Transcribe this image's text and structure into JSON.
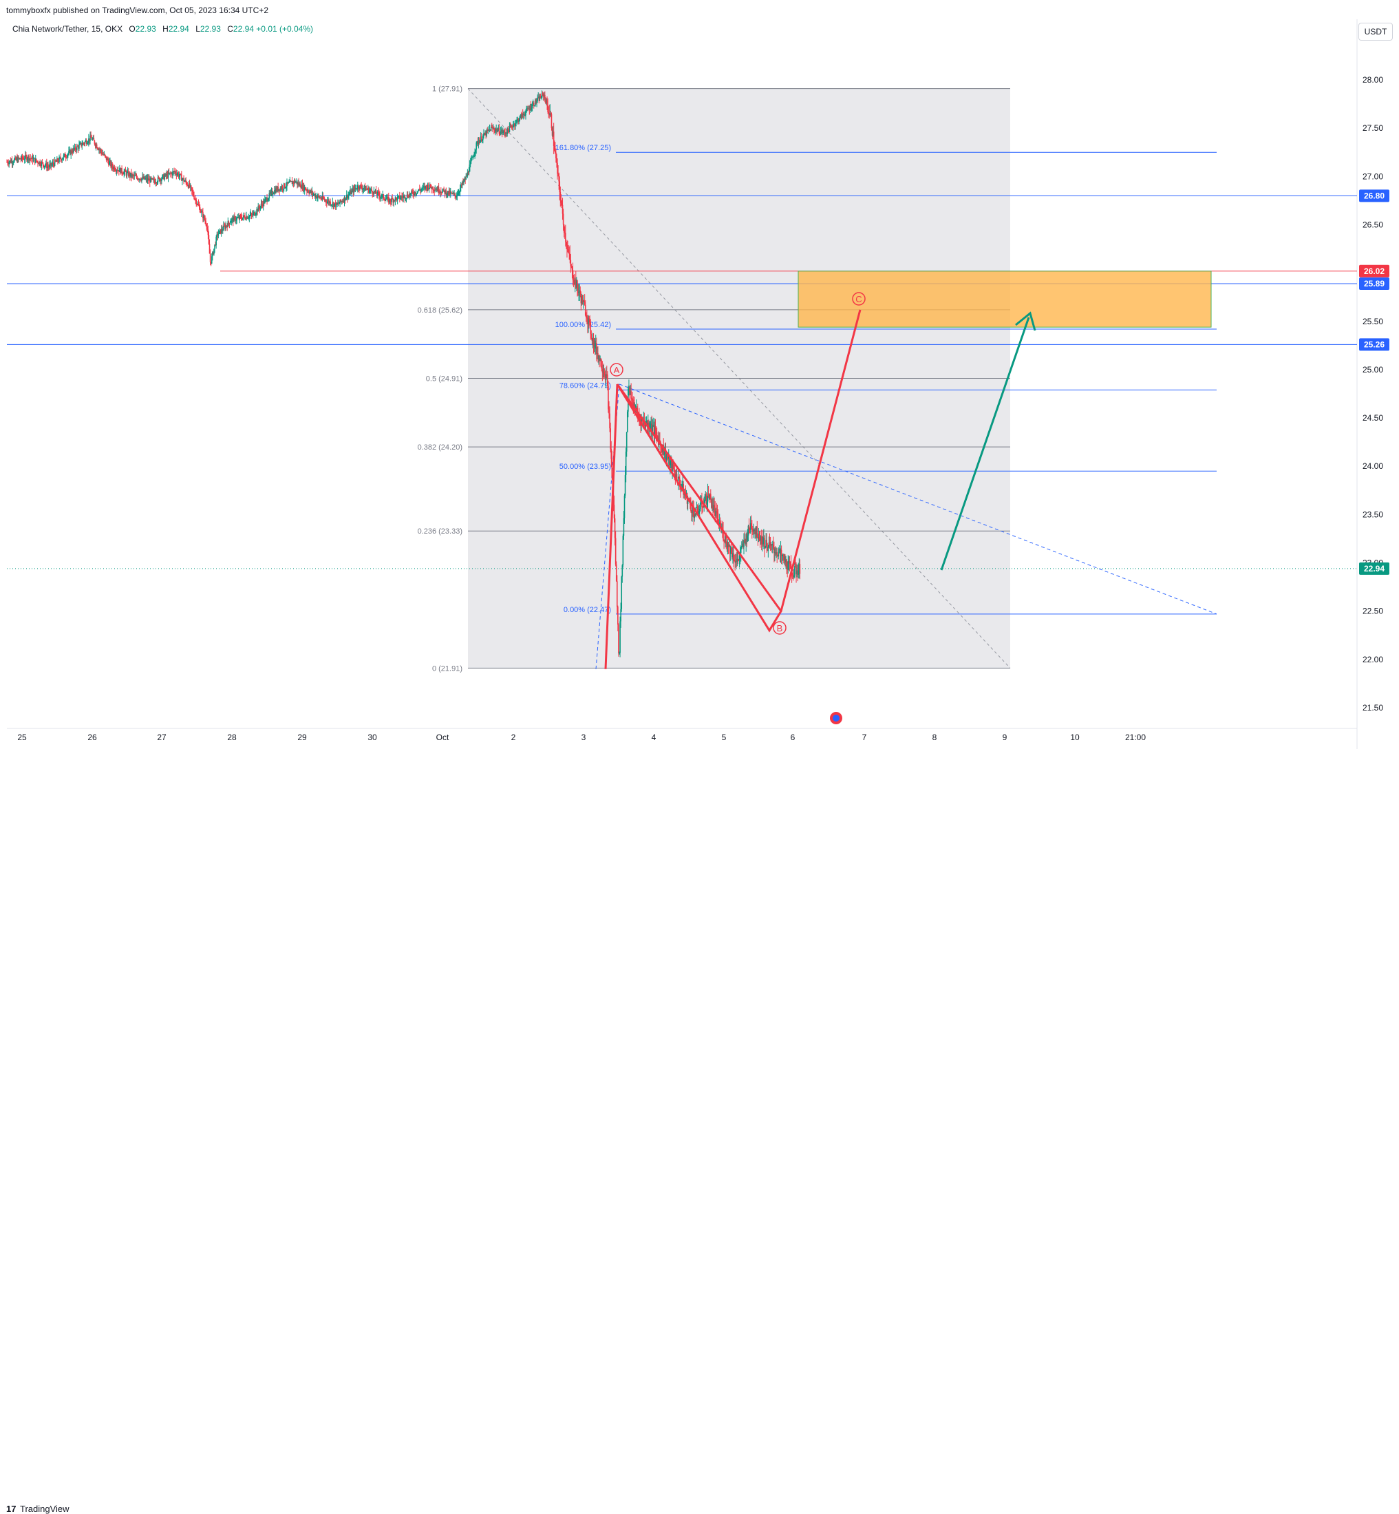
{
  "header": {
    "publish_line": "tommyboxfx published on TradingView.com, Oct 05, 2023 16:34 UTC+2",
    "symbol": "Chia Network/Tether, 15, OKX",
    "open_label": "O",
    "open": "22.93",
    "high_label": "H",
    "high": "22.94",
    "low_label": "L",
    "low": "22.93",
    "close_label": "C",
    "close": "22.94",
    "change": "+0.01 (+0.04%)",
    "currency": "USDT"
  },
  "footer": {
    "logo_mark": "17",
    "logo_text": "TradingView"
  },
  "colors": {
    "up": "#089981",
    "down": "#f23645",
    "blue_line": "#2962ff",
    "red_line": "#f23645",
    "box_fill": "#ffb74d",
    "zone": "#e7e7ea",
    "wave": "#f23645",
    "arrow": "#089981"
  },
  "chart_data": {
    "type": "candlestick",
    "title": "",
    "xlabel": "",
    "ylabel": "",
    "ylim": [
      21.25,
      28.35
    ],
    "y_ticks": [
      "28.00",
      "27.50",
      "27.00",
      "26.50",
      "25.50",
      "25.00",
      "24.50",
      "24.00",
      "23.50",
      "23.00",
      "22.50",
      "22.00",
      "21.50"
    ],
    "x_ticks": [
      "25",
      "26",
      "27",
      "28",
      "29",
      "30",
      "Oct",
      "2",
      "3",
      "4",
      "5",
      "6",
      "7",
      "8",
      "9",
      "10",
      "21:00"
    ],
    "price_tags": [
      {
        "label": "26.80",
        "value": 26.8,
        "color": "blue"
      },
      {
        "label": "26.02",
        "value": 26.02,
        "color": "red"
      },
      {
        "label": "25.89",
        "value": 25.89,
        "color": "blue"
      },
      {
        "label": "25.26",
        "value": 25.26,
        "color": "blue"
      },
      {
        "label": "22.94",
        "value": 22.94,
        "color": "green"
      }
    ],
    "fib_retracement": [
      {
        "label": "1 (27.91)",
        "value": 27.91
      },
      {
        "label": "0.618 (25.62)",
        "value": 25.62
      },
      {
        "label": "0.5 (24.91)",
        "value": 24.91
      },
      {
        "label": "0.382 (24.20)",
        "value": 24.2
      },
      {
        "label": "0.236 (23.33)",
        "value": 23.33
      },
      {
        "label": "0 (21.91)",
        "value": 21.91
      }
    ],
    "fib_extension": [
      {
        "label": "161.80% (27.25)",
        "value": 27.25
      },
      {
        "label": "100.00% (25.42)",
        "value": 25.42
      },
      {
        "label": "78.60% (24.79)",
        "value": 24.79
      },
      {
        "label": "50.00% (23.95)",
        "value": 23.95
      },
      {
        "label": "0.00% (22.47)",
        "value": 22.47
      }
    ],
    "target_zone": {
      "top": 26.02,
      "bottom": 25.44
    },
    "wave_labels": [
      {
        "label": "A",
        "value": 24.89
      },
      {
        "label": "B",
        "value": 22.31
      },
      {
        "label": "C",
        "value": 25.72
      }
    ],
    "price_path": [
      [
        0.0,
        27.15
      ],
      [
        0.3,
        27.2
      ],
      [
        0.6,
        27.1
      ],
      [
        1.0,
        27.3
      ],
      [
        1.2,
        27.4
      ],
      [
        1.5,
        27.1
      ],
      [
        1.8,
        27.0
      ],
      [
        2.1,
        26.95
      ],
      [
        2.4,
        27.05
      ],
      [
        2.6,
        26.9
      ],
      [
        2.85,
        26.5
      ],
      [
        2.9,
        26.1
      ],
      [
        3.0,
        26.4
      ],
      [
        3.2,
        26.55
      ],
      [
        3.5,
        26.6
      ],
      [
        3.8,
        26.85
      ],
      [
        4.1,
        26.95
      ],
      [
        4.4,
        26.8
      ],
      [
        4.7,
        26.7
      ],
      [
        5.0,
        26.9
      ],
      [
        5.2,
        26.85
      ],
      [
        5.45,
        26.75
      ],
      [
        5.7,
        26.8
      ],
      [
        6.0,
        26.9
      ],
      [
        6.2,
        26.85
      ],
      [
        6.4,
        26.8
      ],
      [
        6.55,
        27.0
      ],
      [
        6.7,
        27.35
      ],
      [
        6.9,
        27.5
      ],
      [
        7.1,
        27.45
      ],
      [
        7.3,
        27.6
      ],
      [
        7.5,
        27.75
      ],
      [
        7.65,
        27.85
      ],
      [
        7.75,
        27.6
      ],
      [
        7.85,
        27.0
      ],
      [
        7.95,
        26.4
      ],
      [
        8.05,
        26.0
      ],
      [
        8.15,
        25.8
      ],
      [
        8.25,
        25.6
      ],
      [
        8.35,
        25.3
      ],
      [
        8.45,
        25.1
      ],
      [
        8.55,
        24.9
      ],
      [
        8.65,
        23.5
      ],
      [
        8.72,
        22.0
      ],
      [
        8.78,
        23.3
      ],
      [
        8.85,
        24.8
      ],
      [
        9.0,
        24.5
      ],
      [
        9.2,
        24.4
      ],
      [
        9.4,
        24.1
      ],
      [
        9.6,
        23.8
      ],
      [
        9.8,
        23.5
      ],
      [
        10.0,
        23.7
      ],
      [
        10.2,
        23.3
      ],
      [
        10.4,
        23.0
      ],
      [
        10.6,
        23.4
      ],
      [
        10.8,
        23.2
      ],
      [
        11.0,
        23.1
      ],
      [
        11.2,
        22.9
      ],
      [
        11.3,
        22.94
      ]
    ],
    "series": [
      {
        "name": "",
        "values": []
      }
    ]
  }
}
